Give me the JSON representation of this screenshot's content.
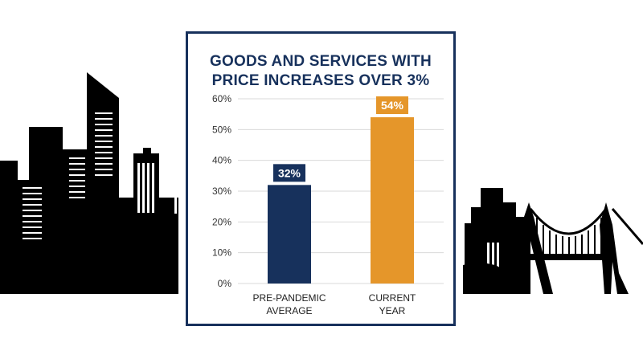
{
  "colors": {
    "navy": "#17315c",
    "orange": "#e5962a",
    "skyline": "#000000",
    "grid": "#d9d9d9"
  },
  "chart_data": {
    "type": "bar",
    "title_lines": [
      "GOODS AND SERVICES WITH",
      "PRICE INCREASES OVER 3%"
    ],
    "categories": [
      [
        "PRE-PANDEMIC",
        "AVERAGE"
      ],
      [
        "CURRENT",
        "YEAR"
      ]
    ],
    "values": [
      32,
      54
    ],
    "data_labels": [
      "32%",
      "54%"
    ],
    "bar_colors": [
      "#17315c",
      "#e5962a"
    ],
    "yticks": [
      "0%",
      "10%",
      "20%",
      "30%",
      "40%",
      "50%",
      "60%"
    ],
    "ylim": [
      0,
      60
    ],
    "grid": true,
    "legend": "none"
  }
}
